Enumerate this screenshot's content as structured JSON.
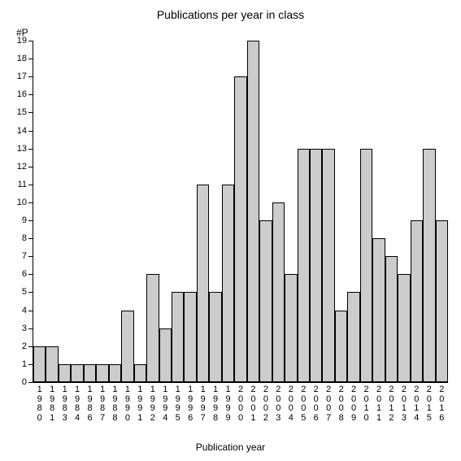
{
  "chart": {
    "type": "bar",
    "title": "Publications per year in class",
    "title_fontsize": 14,
    "ylabel_short": "#P",
    "xlabel": "Publication year",
    "label_fontsize": 12,
    "background_color": "#ffffff",
    "axis_color": "#000000",
    "bar_fill": "#cccccc",
    "bar_border": "#000000",
    "tick_fontsize": 11,
    "yticks": [
      0,
      1,
      2,
      3,
      4,
      5,
      6,
      7,
      8,
      9,
      10,
      11,
      12,
      13,
      14,
      15,
      16,
      17,
      18,
      19
    ],
    "ylim": [
      0,
      19
    ],
    "categories": [
      "1980",
      "1981",
      "1983",
      "1984",
      "1986",
      "1987",
      "1988",
      "1990",
      "1991",
      "1992",
      "1994",
      "1995",
      "1996",
      "1997",
      "1998",
      "1999",
      "2000",
      "2001",
      "2002",
      "2003",
      "2004",
      "2005",
      "2006",
      "2007",
      "2008",
      "2009",
      "2010",
      "2011",
      "2012",
      "2013",
      "2014",
      "2015",
      "2016"
    ],
    "values": [
      2,
      2,
      1,
      1,
      1,
      1,
      1,
      4,
      1,
      6,
      3,
      5,
      5,
      11,
      5,
      11,
      17,
      19,
      9,
      10,
      6,
      13,
      13,
      13,
      4,
      5,
      13,
      8,
      7,
      6,
      9,
      13,
      9
    ],
    "bar_width_ratio": 1.0
  }
}
